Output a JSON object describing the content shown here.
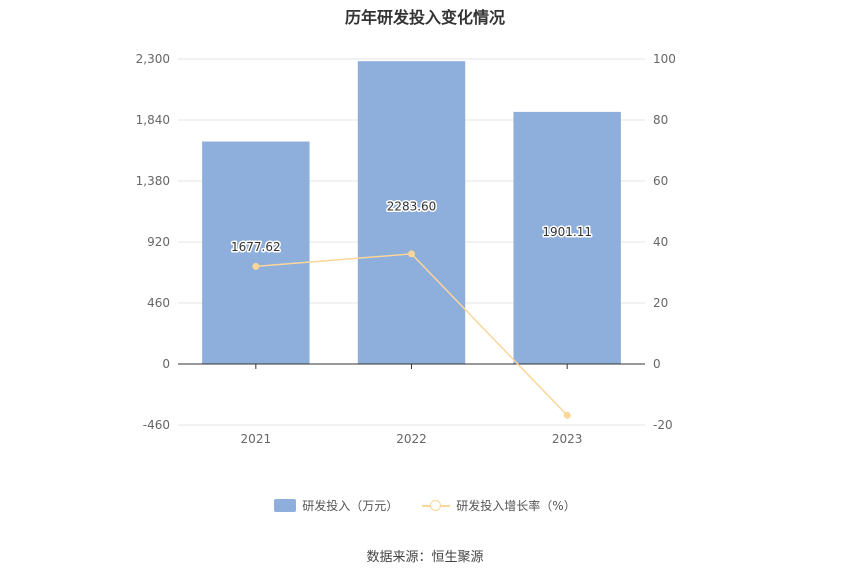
{
  "title": "历年研发投入变化情况",
  "source": "数据来源：恒生聚源",
  "colors": {
    "bar": "#8eaedb",
    "line": "#fad69a",
    "grid": "#e6e6e6",
    "axis": "#333333"
  },
  "chart_data": {
    "type": "bar+line",
    "categories": [
      "2021",
      "2022",
      "2023"
    ],
    "series": [
      {
        "name": "研发投入（万元）",
        "type": "bar",
        "axis": "left",
        "values": [
          1677.62,
          2283.6,
          1901.11
        ],
        "labels": [
          "1677.62",
          "2283.60",
          "1901.11"
        ]
      },
      {
        "name": "研发投入增长率（%）",
        "type": "line",
        "axis": "right",
        "values": [
          32.0,
          36.1,
          -16.8
        ]
      }
    ],
    "y_left": {
      "min": -460,
      "max": 2300,
      "ticks": [
        2300,
        1840,
        1380,
        920,
        460,
        0,
        -460
      ],
      "tick_labels": [
        "2,300",
        "1,840",
        "1,380",
        "920",
        "460",
        "0",
        "-460"
      ]
    },
    "y_right": {
      "min": -20,
      "max": 100,
      "ticks": [
        100,
        80,
        60,
        40,
        20,
        0,
        -20
      ],
      "tick_labels": [
        "100",
        "80",
        "60",
        "40",
        "20",
        "0",
        "-20"
      ]
    },
    "grid": true,
    "legend_position": "bottom"
  }
}
